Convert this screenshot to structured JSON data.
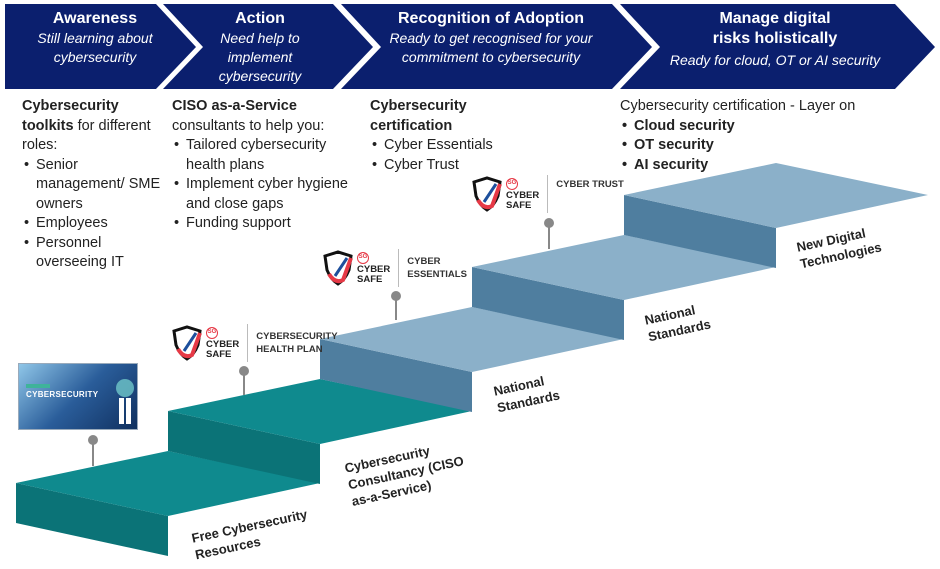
{
  "header": [
    {
      "title": "Awareness",
      "subtitle": "Still learning about cybersecurity"
    },
    {
      "title": "Action",
      "subtitle": "Need help to implement cybersecurity"
    },
    {
      "title": "Recognition of Adoption",
      "subtitle": "Ready to get recognised for your commitment to cybersecurity"
    },
    {
      "title": "Manage digital risks holistically",
      "subtitle": "Ready for  cloud, OT or AI security"
    }
  ],
  "columns": {
    "awareness": {
      "lead_bold": "Cybersecurity toolkits",
      "lead_rest": " for different roles:",
      "items": [
        "Senior management/ SME owners",
        "Employees",
        "Personnel overseeing IT"
      ]
    },
    "action": {
      "lead_bold": "CISO as-a-Service",
      "lead_rest": "consultants to help you:",
      "items": [
        "Tailored cybersecurity health plans",
        "Implement cyber hygiene and close  gaps",
        "Funding support"
      ]
    },
    "recognition": {
      "lead_bold": "Cybersecurity certification",
      "items": [
        "Cyber Essentials",
        "Cyber Trust"
      ]
    },
    "manage": {
      "lead": "Cybersecurity certification - Layer on",
      "items": [
        "Cloud security",
        "OT security",
        "AI security"
      ]
    }
  },
  "steps": [
    {
      "label": "Free Cybersecurity Resources",
      "color_top": "#0f8a8e",
      "color_side": "#0b7377"
    },
    {
      "label": "Cybersecurity Consultancy (CISO as-a-Service)",
      "color_top": "#0f8a8e",
      "color_side": "#0b7377"
    },
    {
      "label": "National Standards",
      "color_top": "#8bb0c9",
      "color_side": "#4f7e9f"
    },
    {
      "label": "National Standards",
      "color_top": "#8bb0c9",
      "color_side": "#4f7e9f"
    },
    {
      "label": "New Digital Technologies",
      "color_top": "#8bb0c9",
      "color_side": "#4f7e9f"
    }
  ],
  "badges": [
    {
      "sg": "SG",
      "brand_line1": "CYBER",
      "brand_line2": "SAFE",
      "label_line1": "CYBERSECURITY",
      "label_line2": "HEALTH PLAN"
    },
    {
      "sg": "SG",
      "brand_line1": "CYBER",
      "brand_line2": "SAFE",
      "label_line1": "CYBER",
      "label_line2": "ESSENTIALS"
    },
    {
      "sg": "SG",
      "brand_line1": "CYBER",
      "brand_line2": "SAFE",
      "label_line1": "CYBER TRUST",
      "label_line2": ""
    }
  ],
  "thumbnail": {
    "title": "CYBERSECURITY"
  },
  "colors": {
    "header": "#0b1f6e",
    "shield_red": "#e63946",
    "shield_blue": "#1d4f9c"
  }
}
